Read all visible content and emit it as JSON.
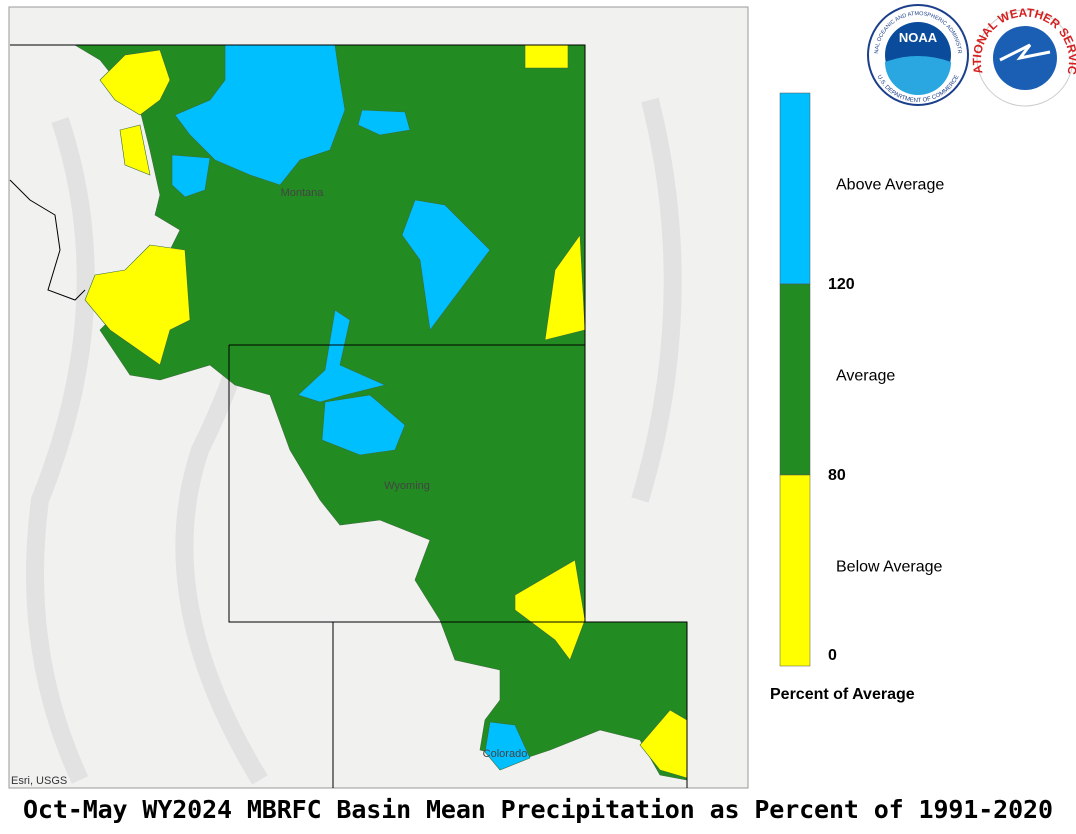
{
  "map": {
    "title": "Oct-May WY2024 MBRFC Basin Mean Precipitation as Percent of 1991-2020",
    "attribution": "Esri, USGS",
    "state_labels": [
      "Montana",
      "Wyoming",
      "Colorado"
    ]
  },
  "legend": {
    "title": "Percent of Average",
    "classes": [
      {
        "label": "Above Average",
        "color": "#00bfff"
      },
      {
        "label": "Average",
        "color": "#228b22"
      },
      {
        "label": "Below Average",
        "color": "#ffff00"
      }
    ],
    "breaks": [
      120,
      80,
      0
    ]
  },
  "logos": {
    "noaa": {
      "name": "NOAA",
      "ring_top": "NATIONAL OCEANIC AND ATMOSPHERIC ADMINISTRATION",
      "ring_bottom": "U.S. DEPARTMENT OF COMMERCE"
    },
    "nws": {
      "ring": "NATIONAL WEATHER SERVICE"
    }
  }
}
